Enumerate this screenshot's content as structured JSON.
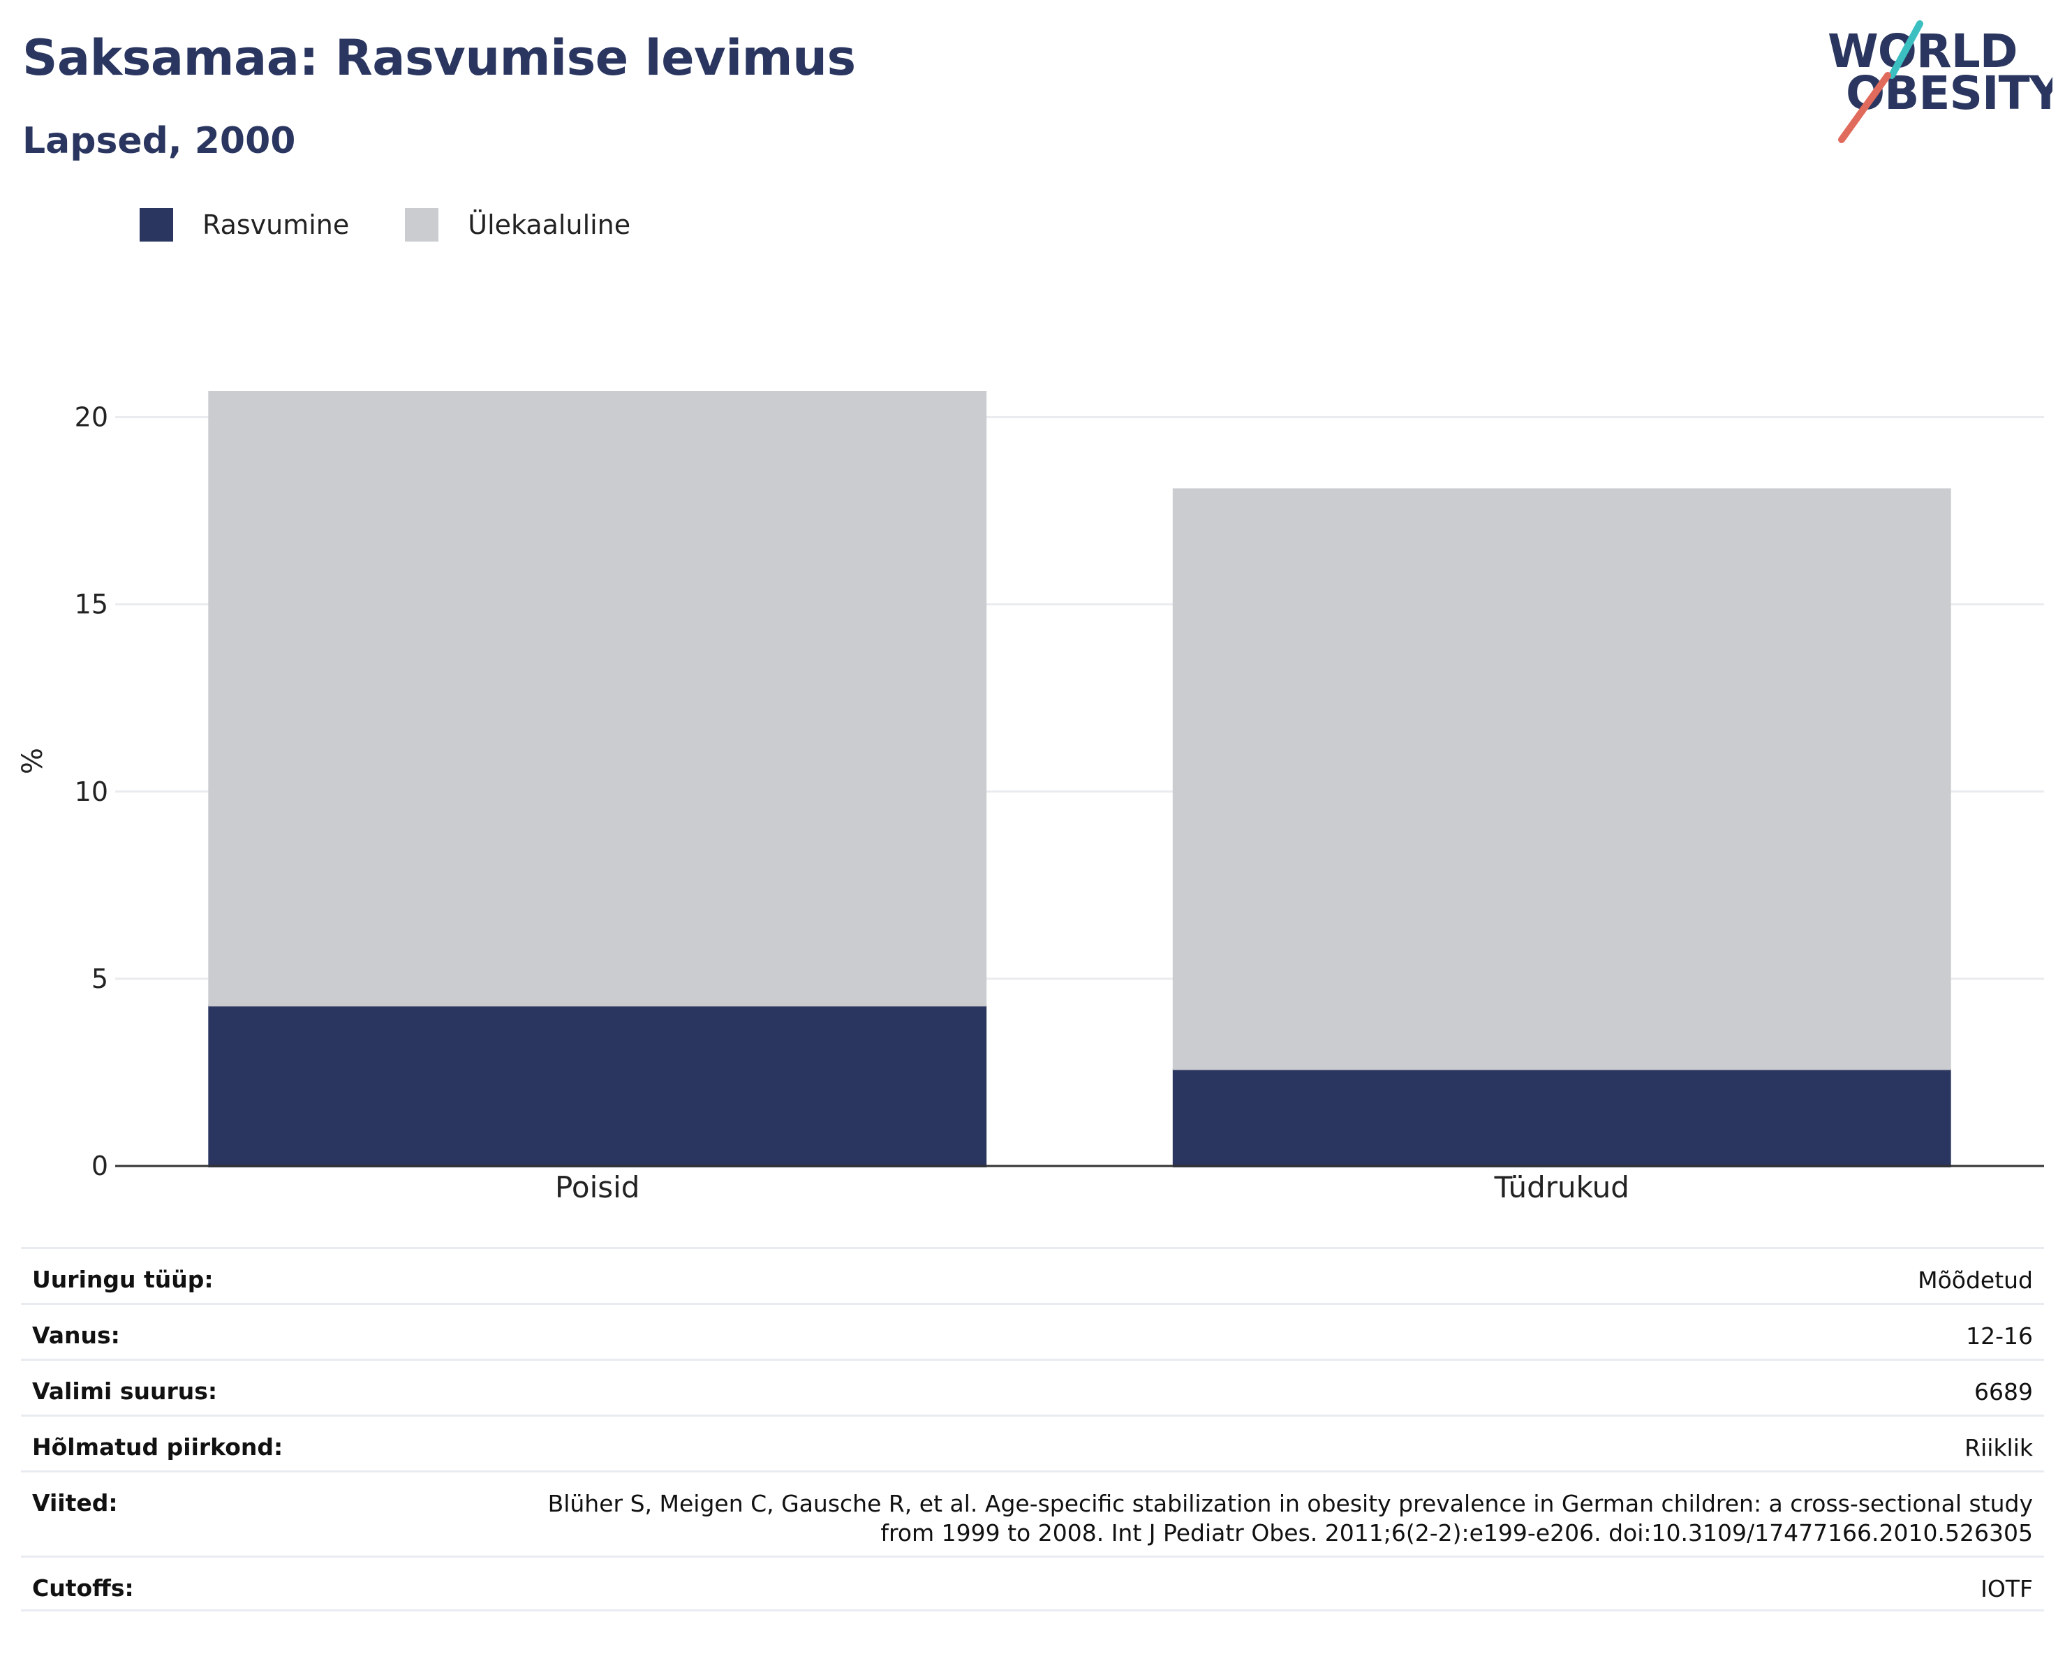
{
  "header": {
    "title": "Saksamaa: Rasvumise levimus",
    "subtitle": "Lapsed, 2000"
  },
  "logo": {
    "line1": "WORLD",
    "line2": "OBESITY",
    "colors": {
      "text": "#2a365f",
      "slash_top": "#3bbfc1",
      "slash_bottom": "#e06b5d"
    }
  },
  "legend": [
    {
      "label": "Rasvumine",
      "color": "#2a365f"
    },
    {
      "label": "Ülekaaluline",
      "color": "#cacccf"
    }
  ],
  "chart_data": {
    "type": "bar",
    "stacked": true,
    "categories": [
      "Poisid",
      "Tüdrukud"
    ],
    "series": [
      {
        "name": "Rasvumine",
        "color": "#2a365f",
        "values": [
          4.3,
          2.6
        ]
      },
      {
        "name": "Ülekaaluline",
        "color": "#cacccf",
        "values": [
          16.4,
          15.5
        ]
      }
    ],
    "ylabel": "%",
    "ylim": [
      0,
      20.7
    ],
    "yticks": [
      0,
      5,
      10,
      15,
      20
    ],
    "grid": true
  },
  "info": {
    "rows": [
      {
        "key": "Uuringu tüüp:",
        "value": "Mõõdetud"
      },
      {
        "key": "Vanus:",
        "value": "12-16"
      },
      {
        "key": "Valimi suurus:",
        "value": "6689"
      },
      {
        "key": "Hõlmatud piirkond:",
        "value": "Riiklik"
      },
      {
        "key": "Viited:",
        "value": "Blüher S, Meigen C, Gausche R, et al. Age-specific stabilization in obesity prevalence in German children: a cross-sectional study from 1999 to 2008. Int J Pediatr Obes. 2011;6(2-2):e199-e206. doi:10.3109/17477166.2010.526305"
      },
      {
        "key": "Cutoffs:",
        "value": "IOTF"
      }
    ]
  }
}
